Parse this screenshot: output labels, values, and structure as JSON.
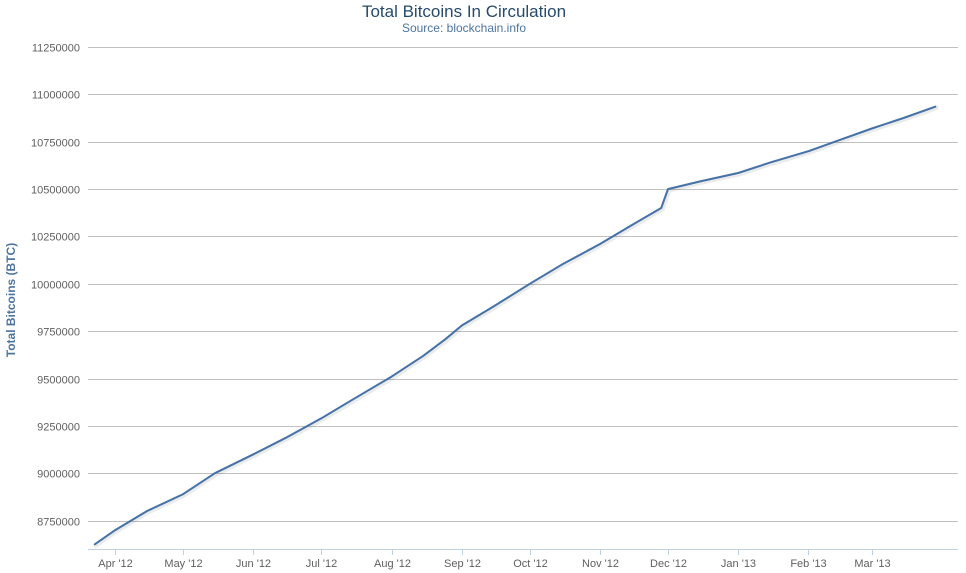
{
  "chart_data": {
    "type": "line",
    "title": "Total Bitcoins In Circulation",
    "subtitle": "Source: blockchain.info",
    "ylabel": "Total Bitcoins (BTC)",
    "xlabel": "",
    "ylim": [
      8600000,
      11250000
    ],
    "yticks": [
      8750000,
      9000000,
      9250000,
      9500000,
      9750000,
      10000000,
      10250000,
      10500000,
      10750000,
      11000000,
      11250000
    ],
    "xlim": [
      "2012-03-20",
      "2013-04-08"
    ],
    "xticks": [
      {
        "label": "Apr '12",
        "date": "2012-04-01"
      },
      {
        "label": "May '12",
        "date": "2012-05-01"
      },
      {
        "label": "Jun '12",
        "date": "2012-06-01"
      },
      {
        "label": "Jul '12",
        "date": "2012-07-01"
      },
      {
        "label": "Aug '12",
        "date": "2012-08-01"
      },
      {
        "label": "Sep '12",
        "date": "2012-09-01"
      },
      {
        "label": "Oct '12",
        "date": "2012-10-01"
      },
      {
        "label": "Nov '12",
        "date": "2012-11-01"
      },
      {
        "label": "Dec '12",
        "date": "2012-12-01"
      },
      {
        "label": "Jan '13",
        "date": "2013-01-01"
      },
      {
        "label": "Feb '13",
        "date": "2013-02-01"
      },
      {
        "label": "Mar '13",
        "date": "2013-03-01"
      }
    ],
    "grid": true,
    "legend": "none",
    "line_color": "#4572a7",
    "series": [
      {
        "x": [
          "2012-03-23",
          "2012-04-01",
          "2012-04-15",
          "2012-05-01",
          "2012-05-15",
          "2012-06-01",
          "2012-06-15",
          "2012-07-01",
          "2012-07-15",
          "2012-08-01",
          "2012-08-15",
          "2012-08-25",
          "2012-09-01",
          "2012-09-15",
          "2012-10-01",
          "2012-10-15",
          "2012-11-01",
          "2012-11-15",
          "2012-11-28",
          "2012-12-01",
          "2012-12-15",
          "2013-01-01",
          "2013-01-15",
          "2013-02-01",
          "2013-02-15",
          "2013-03-01",
          "2013-03-15",
          "2013-03-29"
        ],
        "values": [
          8625000,
          8700000,
          8800000,
          8890000,
          9000000,
          9100000,
          9185000,
          9290000,
          9390000,
          9510000,
          9620000,
          9710000,
          9780000,
          9880000,
          10000000,
          10100000,
          10210000,
          10310000,
          10400000,
          10500000,
          10540000,
          10585000,
          10640000,
          10700000,
          10760000,
          10820000,
          10875000,
          10935000
        ]
      }
    ]
  }
}
